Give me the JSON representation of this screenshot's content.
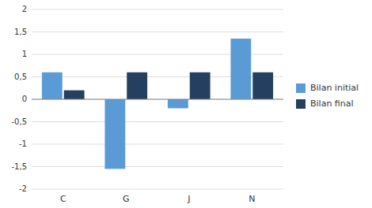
{
  "chart_data": {
    "type": "bar",
    "categories": [
      "C",
      "G",
      "J",
      "N"
    ],
    "series": [
      {
        "name": "Bilan initial",
        "color": "#5B9BD5",
        "values": [
          0.6,
          -1.55,
          -0.2,
          1.35
        ]
      },
      {
        "name": "Bilan final",
        "color": "#243F60",
        "values": [
          0.2,
          0.6,
          0.6,
          0.6
        ]
      }
    ],
    "ylim": [
      -2,
      2
    ],
    "yticks": [
      -2,
      {
        "value": -1.5,
        "label": "-1,5"
      },
      -1,
      {
        "value": -0.5,
        "label": "-0,5"
      },
      0,
      {
        "value": 0.5,
        "label": "0,5"
      },
      1,
      {
        "value": 1.5,
        "label": "1,5"
      },
      2
    ],
    "grid": true,
    "legend": "right"
  }
}
